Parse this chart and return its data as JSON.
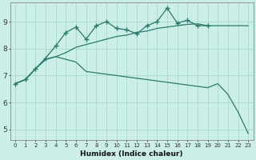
{
  "xlabel": "Humidex (Indice chaleur)",
  "bg_color": "#cceee8",
  "line_color": "#2a7a6a",
  "grid_color": "#aad8d0",
  "xlim": [
    -0.5,
    23.5
  ],
  "ylim": [
    4.6,
    9.7
  ],
  "xticks": [
    0,
    1,
    2,
    3,
    4,
    5,
    6,
    7,
    8,
    9,
    10,
    11,
    12,
    13,
    14,
    15,
    16,
    17,
    18,
    19,
    20,
    21,
    22,
    23
  ],
  "yticks": [
    5,
    6,
    7,
    8,
    9
  ],
  "curve_upper_x": [
    0,
    1,
    2,
    3,
    4,
    5,
    6,
    7,
    8,
    9,
    10,
    11,
    12,
    13,
    14,
    15,
    16,
    17,
    18,
    19
  ],
  "curve_upper_y": [
    6.7,
    6.85,
    7.25,
    7.65,
    8.1,
    8.6,
    8.8,
    8.35,
    8.85,
    9.0,
    8.75,
    8.7,
    8.55,
    8.85,
    9.0,
    9.5,
    8.95,
    9.05,
    8.85,
    8.85
  ],
  "curve_mid_x": [
    0,
    1,
    2,
    3,
    4,
    5,
    6,
    7,
    8,
    9,
    10,
    11,
    12,
    13,
    14,
    15,
    16,
    17,
    18,
    19,
    20,
    21,
    22,
    23
  ],
  "curve_mid_y": [
    6.7,
    6.85,
    7.25,
    7.6,
    7.7,
    7.85,
    8.05,
    8.15,
    8.25,
    8.35,
    8.45,
    8.5,
    8.6,
    8.65,
    8.75,
    8.8,
    8.85,
    8.9,
    8.92,
    8.85,
    8.85,
    8.85,
    8.85,
    8.85
  ],
  "curve_low_x": [
    0,
    1,
    2,
    3,
    4,
    5,
    6,
    7,
    8,
    9,
    10,
    11,
    12,
    13,
    14,
    15,
    16,
    17,
    18,
    19,
    20,
    21,
    22,
    23
  ],
  "curve_low_y": [
    6.7,
    6.85,
    7.25,
    7.6,
    7.7,
    7.6,
    7.5,
    7.15,
    7.1,
    7.05,
    7.0,
    6.95,
    6.9,
    6.85,
    6.8,
    6.75,
    6.7,
    6.65,
    6.6,
    6.55,
    6.7,
    6.3,
    5.65,
    4.85
  ]
}
